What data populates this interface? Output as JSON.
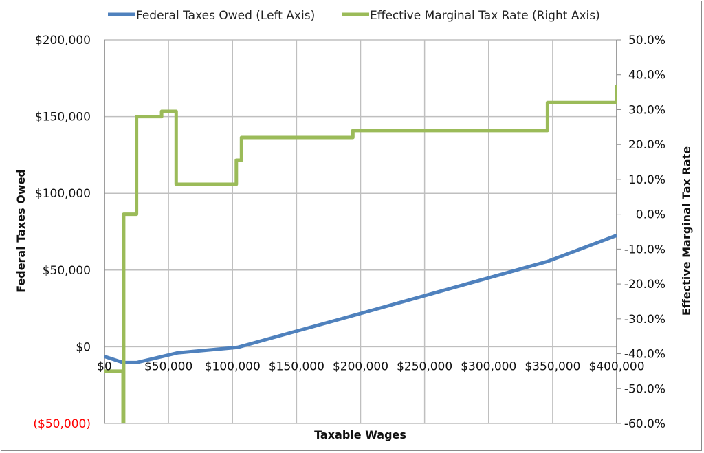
{
  "chart_data": {
    "type": "line",
    "title": "",
    "xlabel": "Taxable Wages",
    "ylabel_left": "Federal Taxes Owed",
    "ylabel_right": "Effective Marginal Tax Rate",
    "legend_position": "top",
    "grid": true,
    "xlim": [
      0,
      400000
    ],
    "ylim_left": [
      -50000,
      200000
    ],
    "ylim_right": [
      -60,
      50
    ],
    "x_ticks": [
      "$0",
      "$50,000",
      "$100,000",
      "$150,000",
      "$200,000",
      "$250,000",
      "$300,000",
      "$350,000",
      "$400,000"
    ],
    "x_tick_values": [
      0,
      50000,
      100000,
      150000,
      200000,
      250000,
      300000,
      350000,
      400000
    ],
    "y_left_ticks": [
      "($50,000)",
      "$0",
      "$50,000",
      "$100,000",
      "$150,000",
      "$200,000"
    ],
    "y_left_tick_values": [
      -50000,
      0,
      50000,
      100000,
      150000,
      200000
    ],
    "y_left_negative_color": "#ff0000",
    "y_right_ticks": [
      "-60.0%",
      "-50.0%",
      "-40.0%",
      "-30.0%",
      "-20.0%",
      "-10.0%",
      "0.0%",
      "10.0%",
      "20.0%",
      "30.0%",
      "40.0%",
      "50.0%"
    ],
    "y_right_tick_values": [
      -60,
      -50,
      -40,
      -30,
      -20,
      -10,
      0,
      10,
      20,
      30,
      40,
      50
    ],
    "series": [
      {
        "name": "Federal Taxes Owed (Left Axis)",
        "axis": "left",
        "color": "#4f81bd",
        "x": [
          0,
          14500,
          25000,
          57000,
          104000,
          208000,
          346000,
          400000
        ],
        "y": [
          -6300,
          -10300,
          -10300,
          -4000,
          -400,
          23500,
          55600,
          72600
        ]
      },
      {
        "name": "Effective Marginal Tax Rate (Right Axis)",
        "axis": "right",
        "color": "#9bbb59",
        "x": [
          0,
          14500,
          14500,
          15000,
          15000,
          25000,
          25000,
          44600,
          44600,
          56000,
          56000,
          103000,
          103000,
          107000,
          107000,
          194000,
          194000,
          346000,
          346000,
          400000,
          400000
        ],
        "y": [
          -45,
          -45,
          -62,
          -62,
          0,
          0,
          28,
          28,
          29.5,
          29.5,
          8.6,
          8.6,
          15.5,
          15.5,
          22,
          22,
          24,
          24,
          32,
          32,
          37
        ]
      }
    ]
  }
}
